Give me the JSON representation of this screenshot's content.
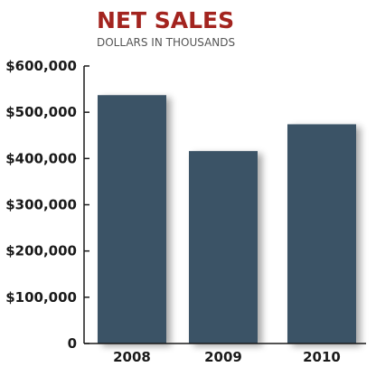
{
  "chart_data": {
    "type": "bar",
    "title": "NET SALES",
    "subtitle": "DOLLARS IN THOUSANDS",
    "categories": [
      "2008",
      "2009",
      "2010"
    ],
    "values": [
      537000,
      416000,
      474000
    ],
    "ylim": [
      0,
      600000
    ],
    "yticks": [
      0,
      100000,
      200000,
      300000,
      400000,
      500000,
      600000
    ],
    "ytick_labels": [
      "0",
      "$100,000",
      "$200,000",
      "$300,000",
      "$400,000",
      "$500,000",
      "$600,000"
    ],
    "xlabel": "",
    "ylabel": "",
    "grid": false,
    "legend": "none",
    "colors": {
      "bar": "#3b5266",
      "title": "#a3241f",
      "axis": "#1a1a1a"
    }
  }
}
